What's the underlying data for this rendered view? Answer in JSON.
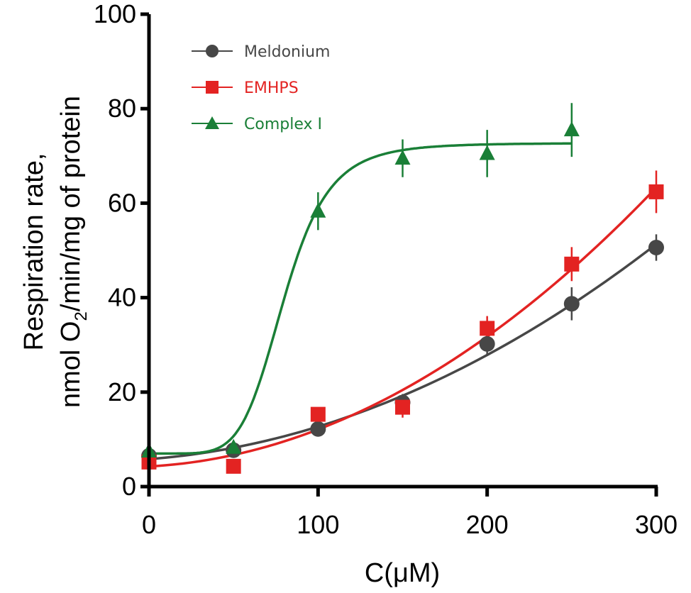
{
  "chart_data": {
    "type": "scatter",
    "title": "",
    "xlabel": "C(μM)",
    "ylabel_line1": "Respiration rate,",
    "ylabel_line2_prefix": "nmol O",
    "ylabel_line2_subscript": "2",
    "ylabel_line2_suffix": "/min/mg of protein",
    "xlim": [
      0,
      300
    ],
    "ylim": [
      0,
      100
    ],
    "xticks": [
      0,
      100,
      200,
      300
    ],
    "xtick_labels": [
      "0",
      "100",
      "200",
      "300"
    ],
    "yticks": [
      0,
      20,
      40,
      60,
      80,
      100
    ],
    "ytick_labels": [
      "0",
      "20",
      "40",
      "60",
      "80",
      "100"
    ],
    "grid": false,
    "legend_position": "top-left",
    "series": [
      {
        "name": "Meldonium",
        "color": "#474747",
        "marker": "circle",
        "x": [
          0,
          50,
          100,
          150,
          200,
          250,
          300
        ],
        "y": [
          6.5,
          7.7,
          12.2,
          17.8,
          30.2,
          38.7,
          50.6
        ],
        "err": [
          0.8,
          0.8,
          0.8,
          1.8,
          2.5,
          3.5,
          2.8
        ],
        "fit": "smooth"
      },
      {
        "name": "EMHPS",
        "color": "#e32322",
        "marker": "square",
        "x": [
          0,
          50,
          100,
          150,
          200,
          250,
          300
        ],
        "y": [
          5.2,
          4.3,
          15.3,
          16.8,
          33.5,
          47.1,
          62.4
        ],
        "err": [
          0.6,
          0.6,
          0.8,
          2.2,
          2.6,
          3.6,
          4.5
        ],
        "fit": "smooth"
      },
      {
        "name": "Complex I",
        "color": "#1a7f37",
        "marker": "triangle",
        "x": [
          0,
          50,
          100,
          150,
          200,
          250
        ],
        "y": [
          7.5,
          8.3,
          58.3,
          69.5,
          70.5,
          75.5
        ],
        "err": [
          0.6,
          0.6,
          4.0,
          4.0,
          5.0,
          5.7
        ],
        "fit": "sigmoid",
        "fit_params": {
          "bottom": 7.0,
          "top": 72.7,
          "ec50": 80,
          "hill": 6
        }
      }
    ]
  }
}
